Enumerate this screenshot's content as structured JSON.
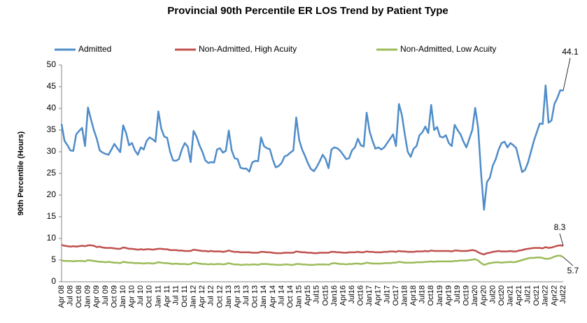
{
  "chart_data": {
    "type": "line",
    "title": "Provincial 90th Percentile ER LOS Trend by Patient Type",
    "y_label": "90th Percentile (Hours)",
    "categories": [
      "Apr 08",
      null,
      null,
      "Jul 08",
      null,
      null,
      "Oct 08",
      null,
      null,
      "Jan 09",
      null,
      null,
      "Apr 09",
      null,
      null,
      "Jul 09",
      null,
      null,
      "Oct 09",
      null,
      null,
      "Jan 10",
      null,
      null,
      "Apr 10",
      null,
      null,
      "Jul 10",
      null,
      null,
      "Oct 10",
      null,
      null,
      "Jan 11",
      null,
      null,
      "Apr 11",
      null,
      null,
      "Jul 11",
      null,
      null,
      "Oct 11",
      null,
      null,
      "Jan 12",
      null,
      null,
      "Apr 12",
      null,
      null,
      "Jul 12",
      null,
      null,
      "Oct 12",
      null,
      null,
      "Jan 13",
      null,
      null,
      "Apr 13",
      null,
      null,
      "Jul 13",
      null,
      null,
      "Oct 13",
      null,
      null,
      "Jan 14",
      null,
      null,
      "Apr 14",
      null,
      null,
      "Jul 14",
      null,
      null,
      "Oct 14",
      null,
      null,
      "Jan 15",
      null,
      null,
      "Apr15",
      null,
      null,
      "Jul15",
      null,
      null,
      "Oct15",
      null,
      null,
      "Jan16",
      null,
      null,
      "Apr16",
      null,
      null,
      "Jul16",
      null,
      null,
      "Oct16",
      null,
      null,
      "Jan17",
      null,
      null,
      "Apr17",
      null,
      null,
      "Jul17",
      null,
      null,
      "Oct17",
      null,
      null,
      "Jan18",
      null,
      null,
      "Apr18",
      null,
      null,
      "Jul18",
      null,
      null,
      "Oct18",
      null,
      null,
      "Jan19",
      null,
      null,
      "Apr19",
      null,
      null,
      "Jul19",
      null,
      null,
      "Oct19",
      null,
      null,
      "Jan20",
      null,
      null,
      "Apr20",
      null,
      null,
      "Jul20",
      null,
      null,
      "Oct20",
      null,
      null,
      "Jan21",
      null,
      null,
      "Apr21",
      null,
      null,
      "Jul21",
      null,
      null,
      "Oct21",
      null,
      null,
      "Jan22",
      null,
      null,
      "Apr22",
      null,
      null,
      "Jul22"
    ],
    "series": [
      {
        "name": "Admitted",
        "color": "#4f8cc9",
        "values": [
          36.4,
          32.5,
          31.5,
          30.3,
          30.2,
          34.0,
          34.8,
          35.5,
          31.3,
          40.2,
          37.5,
          35.0,
          33.0,
          30.3,
          29.8,
          29.5,
          29.3,
          30.5,
          31.8,
          30.8,
          29.9,
          36.1,
          34.3,
          31.5,
          32.0,
          30.3,
          29.3,
          31.0,
          30.5,
          32.5,
          33.3,
          32.9,
          32.3,
          39.3,
          35.3,
          33.5,
          33.2,
          30.0,
          28.0,
          27.9,
          28.3,
          30.5,
          32.0,
          31.2,
          27.6,
          34.8,
          33.5,
          31.5,
          30.0,
          28.0,
          27.4,
          27.6,
          27.5,
          30.5,
          30.8,
          29.8,
          30.2,
          34.9,
          30.3,
          28.5,
          28.3,
          26.3,
          26.1,
          26.1,
          25.4,
          27.5,
          27.9,
          27.8,
          33.3,
          31.3,
          30.8,
          30.6,
          28.2,
          26.4,
          26.7,
          27.4,
          28.9,
          29.2,
          29.8,
          30.3,
          37.9,
          32.7,
          30.5,
          29.0,
          27.3,
          26.0,
          25.5,
          26.5,
          27.8,
          29.3,
          28.3,
          26.2,
          30.5,
          31.0,
          30.8,
          30.2,
          29.3,
          28.3,
          28.5,
          30.3,
          31.0,
          33.0,
          31.5,
          31.2,
          39.0,
          34.7,
          32.5,
          30.7,
          31.0,
          30.5,
          31.0,
          32.0,
          33.0,
          34.0,
          31.3,
          41.0,
          38.5,
          34.0,
          30.0,
          28.8,
          30.7,
          31.3,
          33.8,
          34.5,
          35.8,
          34.3,
          40.8,
          35.0,
          35.7,
          33.5,
          33.3,
          33.8,
          32.0,
          31.3,
          36.2,
          35.0,
          34.0,
          32.3,
          31.0,
          33.0,
          35.0,
          40.1,
          35.5,
          25.0,
          16.6,
          23.0,
          24.0,
          26.8,
          28.3,
          30.5,
          32.0,
          32.3,
          31.0,
          32.0,
          31.5,
          30.8,
          28.0,
          25.3,
          25.8,
          27.5,
          30.0,
          32.5,
          34.5,
          36.5,
          36.4,
          45.3,
          36.7,
          37.2,
          41.0,
          42.4,
          44.2,
          44.1
        ]
      },
      {
        "name": "Non-Admitted, High Acuity",
        "color": "#c0504d",
        "values": [
          8.5,
          8.3,
          8.2,
          8.1,
          8.2,
          8.1,
          8.2,
          8.3,
          8.2,
          8.4,
          8.4,
          8.3,
          8.0,
          8.1,
          7.9,
          7.8,
          7.8,
          7.8,
          7.7,
          7.6,
          7.6,
          7.9,
          7.8,
          7.6,
          7.6,
          7.5,
          7.4,
          7.5,
          7.4,
          7.5,
          7.5,
          7.4,
          7.5,
          7.6,
          7.6,
          7.5,
          7.5,
          7.3,
          7.3,
          7.3,
          7.2,
          7.2,
          7.1,
          7.1,
          7.1,
          7.4,
          7.3,
          7.2,
          7.1,
          7.1,
          7.0,
          7.1,
          7.0,
          7.0,
          7.0,
          6.9,
          7.0,
          7.2,
          7.0,
          6.9,
          6.9,
          6.8,
          6.8,
          6.8,
          6.8,
          6.7,
          6.7,
          6.7,
          6.9,
          6.9,
          6.8,
          6.8,
          6.7,
          6.6,
          6.6,
          6.6,
          6.7,
          6.7,
          6.7,
          6.7,
          7.0,
          6.9,
          6.8,
          6.8,
          6.7,
          6.7,
          6.6,
          6.6,
          6.7,
          6.7,
          6.7,
          6.7,
          6.9,
          6.9,
          6.8,
          6.8,
          6.7,
          6.7,
          6.8,
          6.8,
          6.8,
          6.9,
          6.8,
          6.8,
          7.0,
          6.9,
          6.9,
          6.8,
          6.8,
          6.8,
          6.9,
          6.9,
          7.0,
          7.0,
          6.9,
          7.1,
          7.0,
          7.0,
          6.9,
          6.9,
          6.9,
          7.0,
          7.0,
          7.0,
          7.1,
          7.0,
          7.2,
          7.1,
          7.1,
          7.1,
          7.1,
          7.1,
          7.1,
          7.0,
          7.2,
          7.2,
          7.1,
          7.1,
          7.1,
          7.2,
          7.3,
          7.2,
          6.8,
          6.5,
          6.3,
          6.6,
          6.7,
          6.9,
          7.0,
          7.1,
          7.0,
          7.0,
          7.0,
          7.1,
          7.0,
          7.0,
          7.2,
          7.3,
          7.5,
          7.6,
          7.7,
          7.8,
          7.8,
          7.8,
          7.7,
          8.0,
          7.8,
          7.9,
          8.1,
          8.3,
          8.4,
          8.3
        ]
      },
      {
        "name": "Non-Admitted, Low Acuity",
        "color": "#9bbb59",
        "values": [
          4.9,
          4.8,
          4.8,
          4.8,
          4.7,
          4.8,
          4.8,
          4.8,
          4.7,
          5.0,
          4.9,
          4.8,
          4.7,
          4.6,
          4.6,
          4.5,
          4.6,
          4.5,
          4.4,
          4.4,
          4.3,
          4.6,
          4.5,
          4.4,
          4.4,
          4.3,
          4.3,
          4.3,
          4.2,
          4.3,
          4.3,
          4.2,
          4.3,
          4.5,
          4.4,
          4.3,
          4.3,
          4.2,
          4.1,
          4.2,
          4.1,
          4.1,
          4.1,
          4.0,
          4.1,
          4.4,
          4.3,
          4.2,
          4.1,
          4.1,
          4.0,
          4.1,
          4.0,
          4.1,
          4.1,
          4.0,
          4.1,
          4.3,
          4.1,
          4.0,
          4.0,
          3.9,
          3.9,
          4.0,
          3.9,
          4.0,
          4.0,
          3.9,
          4.1,
          4.1,
          4.1,
          4.0,
          4.0,
          3.9,
          3.9,
          3.9,
          4.0,
          4.0,
          3.9,
          3.9,
          4.1,
          4.1,
          4.0,
          4.0,
          3.9,
          3.9,
          3.9,
          4.0,
          4.0,
          4.0,
          4.0,
          3.9,
          4.2,
          4.3,
          4.2,
          4.1,
          4.1,
          4.0,
          4.1,
          4.1,
          4.2,
          4.2,
          4.1,
          4.2,
          4.4,
          4.3,
          4.2,
          4.2,
          4.2,
          4.2,
          4.3,
          4.3,
          4.3,
          4.4,
          4.4,
          4.6,
          4.5,
          4.4,
          4.4,
          4.4,
          4.4,
          4.5,
          4.5,
          4.5,
          4.6,
          4.6,
          4.7,
          4.6,
          4.7,
          4.7,
          4.7,
          4.7,
          4.7,
          4.7,
          4.8,
          4.8,
          4.9,
          4.9,
          4.9,
          5.0,
          5.1,
          5.2,
          4.9,
          4.3,
          3.9,
          4.1,
          4.3,
          4.4,
          4.5,
          4.5,
          4.4,
          4.5,
          4.5,
          4.6,
          4.5,
          4.6,
          4.8,
          5.0,
          5.2,
          5.4,
          5.5,
          5.5,
          5.6,
          5.6,
          5.5,
          5.3,
          5.3,
          5.5,
          5.8,
          6.0,
          6.0,
          5.7
        ]
      }
    ],
    "ylim": [
      0,
      50
    ],
    "yticks": [
      0,
      5,
      10,
      15,
      20,
      25,
      30,
      35,
      40,
      45,
      50
    ],
    "legend": "top"
  }
}
